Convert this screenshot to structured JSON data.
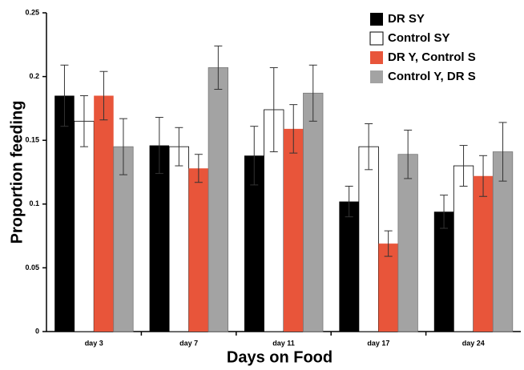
{
  "chart_data": {
    "type": "bar",
    "xlabel": "Days on Food",
    "ylabel": "Proportion feeding",
    "categories": [
      "day 3",
      "day 7",
      "day 11",
      "day 17",
      "day 24"
    ],
    "series": [
      {
        "name": "DR SY",
        "color": "#000000",
        "values": [
          0.185,
          0.146,
          0.138,
          0.102,
          0.094
        ],
        "errors": [
          0.024,
          0.022,
          0.023,
          0.012,
          0.013
        ]
      },
      {
        "name": "Control SY",
        "color": "#ffffff",
        "values": [
          0.165,
          0.145,
          0.174,
          0.145,
          0.13
        ],
        "errors": [
          0.02,
          0.015,
          0.033,
          0.018,
          0.016
        ]
      },
      {
        "name": "DR Y, Control S",
        "color": "#e8553a",
        "values": [
          0.185,
          0.128,
          0.159,
          0.069,
          0.122
        ],
        "errors": [
          0.019,
          0.011,
          0.019,
          0.01,
          0.016
        ]
      },
      {
        "name": "Control Y, DR S",
        "color": "#a3a3a3",
        "values": [
          0.145,
          0.207,
          0.187,
          0.139,
          0.141
        ],
        "errors": [
          0.022,
          0.017,
          0.022,
          0.019,
          0.023
        ]
      }
    ],
    "ylim": [
      0,
      0.25
    ],
    "yticks": [
      0,
      0.05,
      0.1,
      0.15,
      0.2,
      0.25
    ],
    "legend": "upper right"
  }
}
